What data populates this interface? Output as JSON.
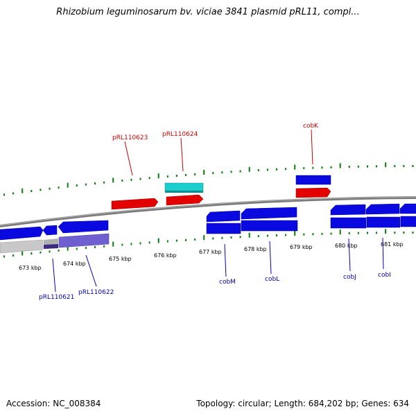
{
  "title": "Rhizobium leguminosarum bv. viciae 3841 plasmid pRL11, compl...",
  "footer": {
    "accession": "Accession: NC_008384",
    "summary": "Topology: circular; Length: 684,202 bp; Genes: 634"
  },
  "colors": {
    "backbone": "#7a7a7a",
    "forward_gene": "#e30000",
    "reverse_gene": "#0000e6",
    "cds_blue": "#0a0ae0",
    "rna": "#1ccdcd",
    "pseudo_grey": "#c8c8c8",
    "violet": "#6f5fd0",
    "tick": "#0a7a0a",
    "label_red": "#cc0000",
    "label_blue": "#0000bb"
  },
  "scale": {
    "unit": "kbp",
    "tick_labels": [
      "673 kbp",
      "674 kbp",
      "675 kbp",
      "676 kbp",
      "677 kbp",
      "678 kbp",
      "679 kbp",
      "680 kbp",
      "681 kbp"
    ]
  },
  "genes": [
    {
      "label": "pRL110623",
      "strand": "forward",
      "color": "red"
    },
    {
      "label": "pRL110624",
      "strand": "forward",
      "color": "red"
    },
    {
      "label": "cobK",
      "strand": "forward",
      "color": "red"
    },
    {
      "label": "pRL110621",
      "strand": "reverse",
      "color": "blue"
    },
    {
      "label": "pRL110622",
      "strand": "reverse",
      "color": "blue"
    },
    {
      "label": "cobM",
      "strand": "reverse",
      "color": "blue"
    },
    {
      "label": "cobL",
      "strand": "reverse",
      "color": "blue"
    },
    {
      "label": "cobJ",
      "strand": "reverse",
      "color": "blue"
    },
    {
      "label": "cobI",
      "strand": "reverse",
      "color": "blue"
    }
  ]
}
